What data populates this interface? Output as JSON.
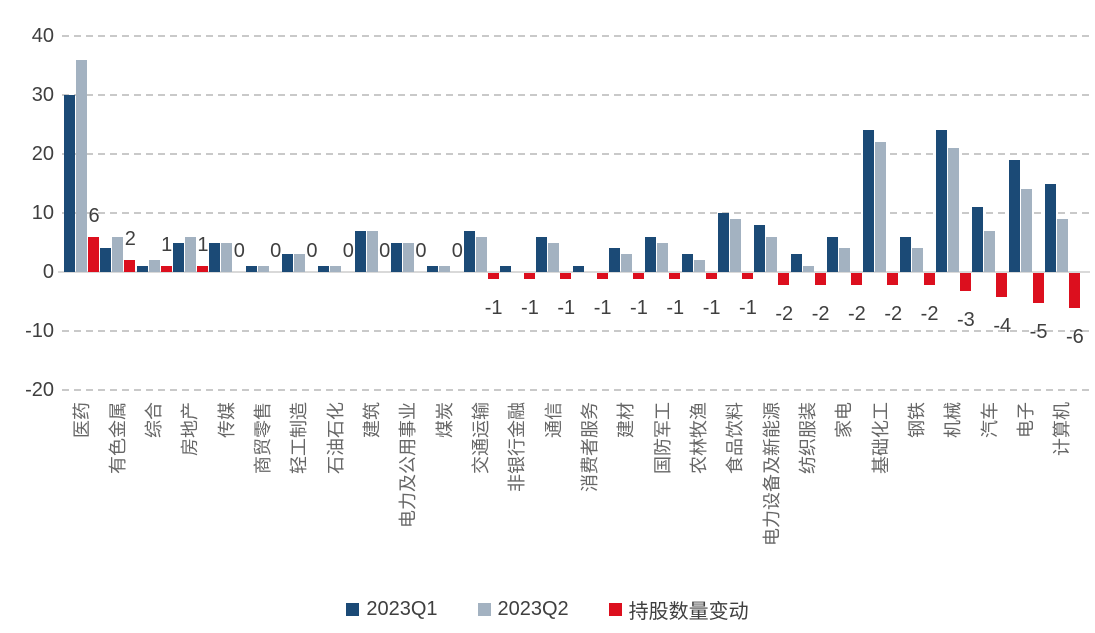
{
  "chart_data": {
    "type": "bar",
    "title": "",
    "categories": [
      "医药",
      "有色金属",
      "综合",
      "房地产",
      "传媒",
      "商贸零售",
      "轻工制造",
      "石油石化",
      "建筑",
      "电力及公用事业",
      "煤炭",
      "交通运输",
      "非银行金融",
      "通信",
      "消费者服务",
      "建材",
      "国防军工",
      "农林牧渔",
      "食品饮料",
      "电力设备及新能源",
      "纺织服装",
      "家电",
      "基础化工",
      "钢铁",
      "机械",
      "汽车",
      "电子",
      "计算机"
    ],
    "series": [
      {
        "name": "2023Q1",
        "color": "#1b4a76",
        "values": [
          30,
          4,
          1,
          5,
          5,
          1,
          3,
          1,
          7,
          5,
          1,
          7,
          1,
          6,
          1,
          4,
          6,
          3,
          10,
          8,
          3,
          6,
          24,
          6,
          24,
          11,
          19,
          15
        ]
      },
      {
        "name": "2023Q2",
        "color": "#a3b2c1",
        "values": [
          36,
          6,
          2,
          6,
          5,
          1,
          3,
          1,
          7,
          5,
          1,
          6,
          0,
          5,
          0,
          3,
          5,
          2,
          9,
          6,
          1,
          4,
          22,
          4,
          21,
          7,
          14,
          9
        ]
      },
      {
        "name": "持股数量变动",
        "color": "#dc0f1e",
        "values": [
          6,
          2,
          1,
          1,
          0,
          0,
          0,
          0,
          0,
          0,
          0,
          -1,
          -1,
          -1,
          -1,
          -1,
          -1,
          -1,
          -1,
          -2,
          -2,
          -2,
          -2,
          -2,
          -3,
          -4,
          -5,
          -6
        ],
        "data_labels": true
      }
    ],
    "ylim": [
      -20,
      40
    ],
    "yticks": [
      40,
      30,
      20,
      10,
      0,
      -10,
      -20
    ],
    "grid": "horizontal-dashed",
    "legend_position": "bottom",
    "axis_text_color": "#3f3f3f",
    "category_text_color": "#666666",
    "gridline_color": "#c9c9c9",
    "baseline_color": "#d9d9d9"
  }
}
